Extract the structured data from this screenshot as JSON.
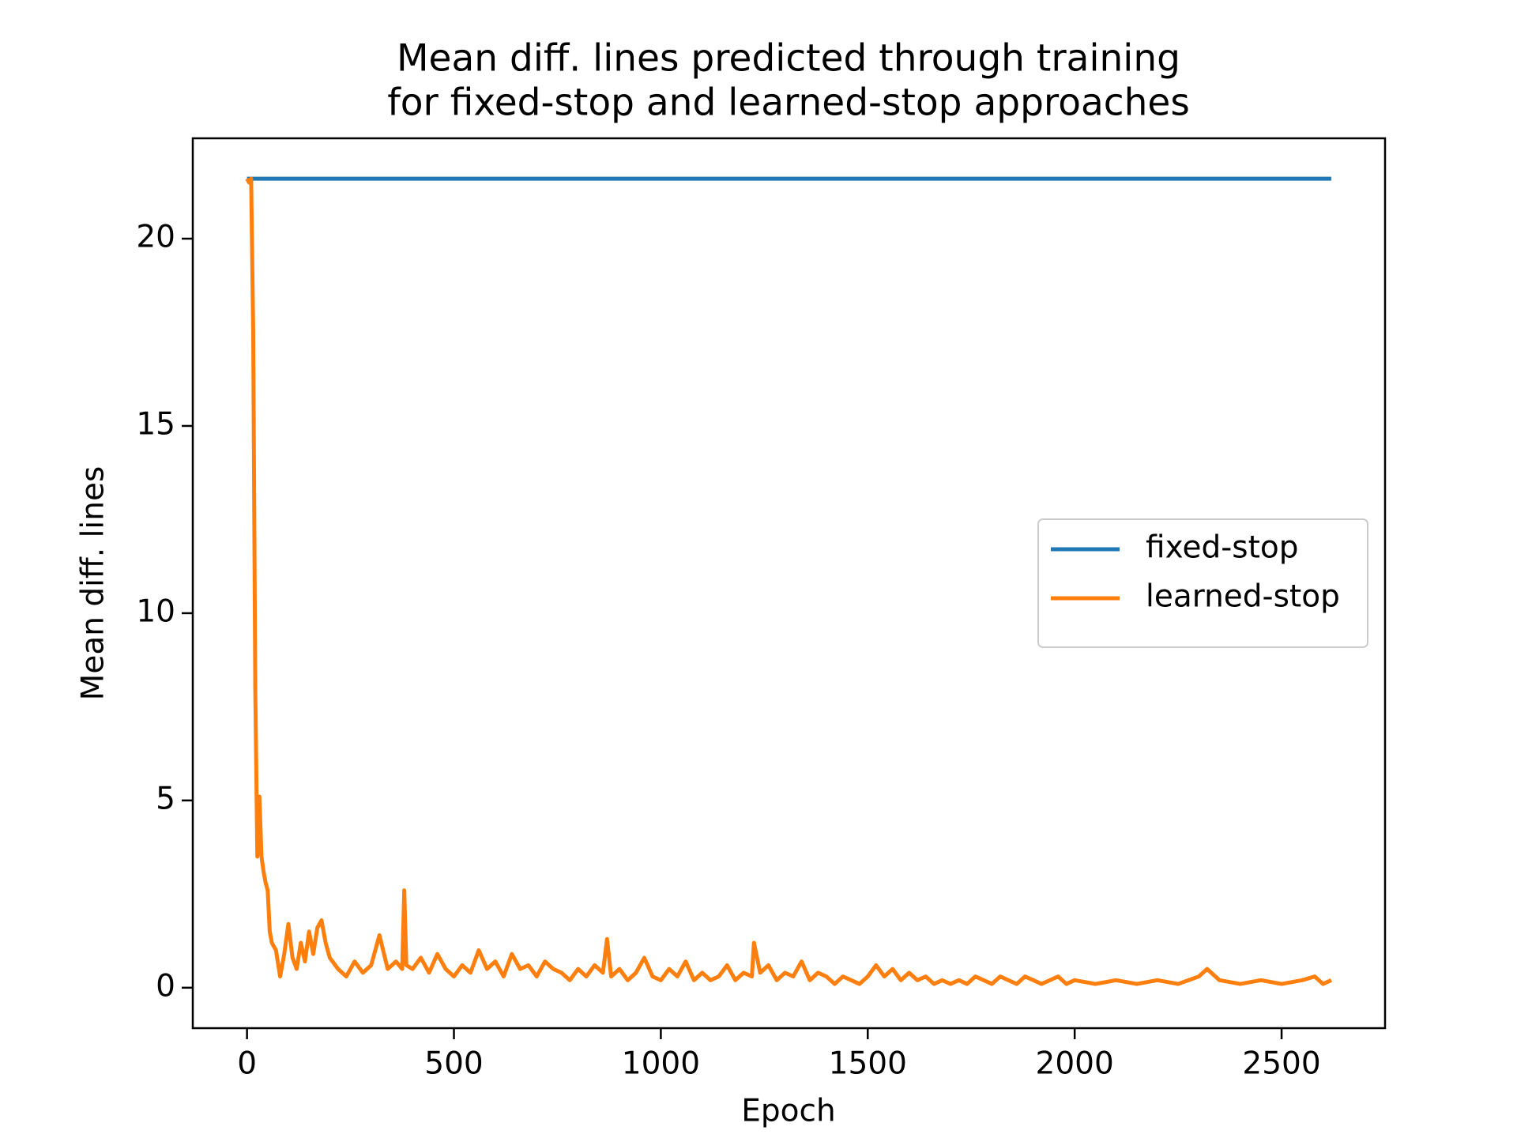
{
  "chart_data": {
    "type": "line",
    "title": [
      "Mean diff. lines predicted through training",
      "for fixed-stop and learned-stop approaches"
    ],
    "xlabel": "Epoch",
    "ylabel": "Mean diff. lines",
    "xlim": [
      -131,
      2750
    ],
    "ylim": [
      -1.08,
      22.68
    ],
    "xticks": [
      0,
      500,
      1000,
      1500,
      2000,
      2500
    ],
    "yticks": [
      0,
      5,
      10,
      15,
      20
    ],
    "grid": false,
    "legend": "center right",
    "series": [
      {
        "name": "fixed-stop",
        "color": "#1f77b4",
        "x": [
          0,
          2620
        ],
        "values": [
          21.6,
          21.6
        ]
      },
      {
        "name": "learned-stop",
        "color": "#ff7f0e",
        "x": [
          0,
          5,
          10,
          15,
          20,
          25,
          30,
          35,
          40,
          45,
          50,
          55,
          60,
          70,
          80,
          90,
          100,
          110,
          120,
          130,
          140,
          150,
          160,
          170,
          180,
          190,
          200,
          220,
          240,
          260,
          280,
          300,
          320,
          340,
          360,
          375,
          380,
          385,
          400,
          420,
          440,
          460,
          480,
          500,
          520,
          540,
          560,
          580,
          600,
          620,
          640,
          660,
          680,
          700,
          720,
          740,
          760,
          780,
          800,
          820,
          840,
          860,
          870,
          880,
          900,
          920,
          940,
          960,
          980,
          1000,
          1020,
          1040,
          1060,
          1080,
          1100,
          1120,
          1140,
          1160,
          1180,
          1200,
          1220,
          1225,
          1240,
          1260,
          1280,
          1300,
          1320,
          1340,
          1360,
          1380,
          1400,
          1420,
          1440,
          1460,
          1480,
          1500,
          1520,
          1540,
          1560,
          1580,
          1600,
          1620,
          1640,
          1660,
          1680,
          1700,
          1720,
          1740,
          1760,
          1780,
          1800,
          1820,
          1840,
          1860,
          1880,
          1900,
          1920,
          1940,
          1960,
          1980,
          2000,
          2050,
          2100,
          2150,
          2200,
          2250,
          2300,
          2320,
          2350,
          2400,
          2450,
          2500,
          2550,
          2580,
          2600,
          2620
        ],
        "values": [
          21.6,
          21.5,
          21.6,
          17.5,
          8,
          3.5,
          5.1,
          3.5,
          3.1,
          2.8,
          2.6,
          1.5,
          1.2,
          1.0,
          0.3,
          0.9,
          1.7,
          0.8,
          0.5,
          1.2,
          0.7,
          1.5,
          0.9,
          1.6,
          1.8,
          1.2,
          0.8,
          0.5,
          0.3,
          0.7,
          0.4,
          0.6,
          1.4,
          0.5,
          0.7,
          0.5,
          2.6,
          0.6,
          0.5,
          0.8,
          0.4,
          0.9,
          0.5,
          0.3,
          0.6,
          0.4,
          1.0,
          0.5,
          0.7,
          0.3,
          0.9,
          0.5,
          0.6,
          0.3,
          0.7,
          0.5,
          0.4,
          0.2,
          0.5,
          0.3,
          0.6,
          0.4,
          1.3,
          0.3,
          0.5,
          0.2,
          0.4,
          0.8,
          0.3,
          0.2,
          0.5,
          0.3,
          0.7,
          0.2,
          0.4,
          0.2,
          0.3,
          0.6,
          0.2,
          0.4,
          0.3,
          1.2,
          0.4,
          0.6,
          0.2,
          0.4,
          0.3,
          0.7,
          0.2,
          0.4,
          0.3,
          0.1,
          0.3,
          0.2,
          0.1,
          0.3,
          0.6,
          0.3,
          0.5,
          0.2,
          0.4,
          0.2,
          0.3,
          0.1,
          0.2,
          0.1,
          0.2,
          0.1,
          0.3,
          0.2,
          0.1,
          0.3,
          0.2,
          0.1,
          0.3,
          0.2,
          0.1,
          0.2,
          0.3,
          0.1,
          0.2,
          0.1,
          0.2,
          0.1,
          0.2,
          0.1,
          0.3,
          0.5,
          0.2,
          0.1,
          0.2,
          0.1,
          0.2,
          0.3,
          0.1,
          0.2
        ]
      }
    ]
  }
}
